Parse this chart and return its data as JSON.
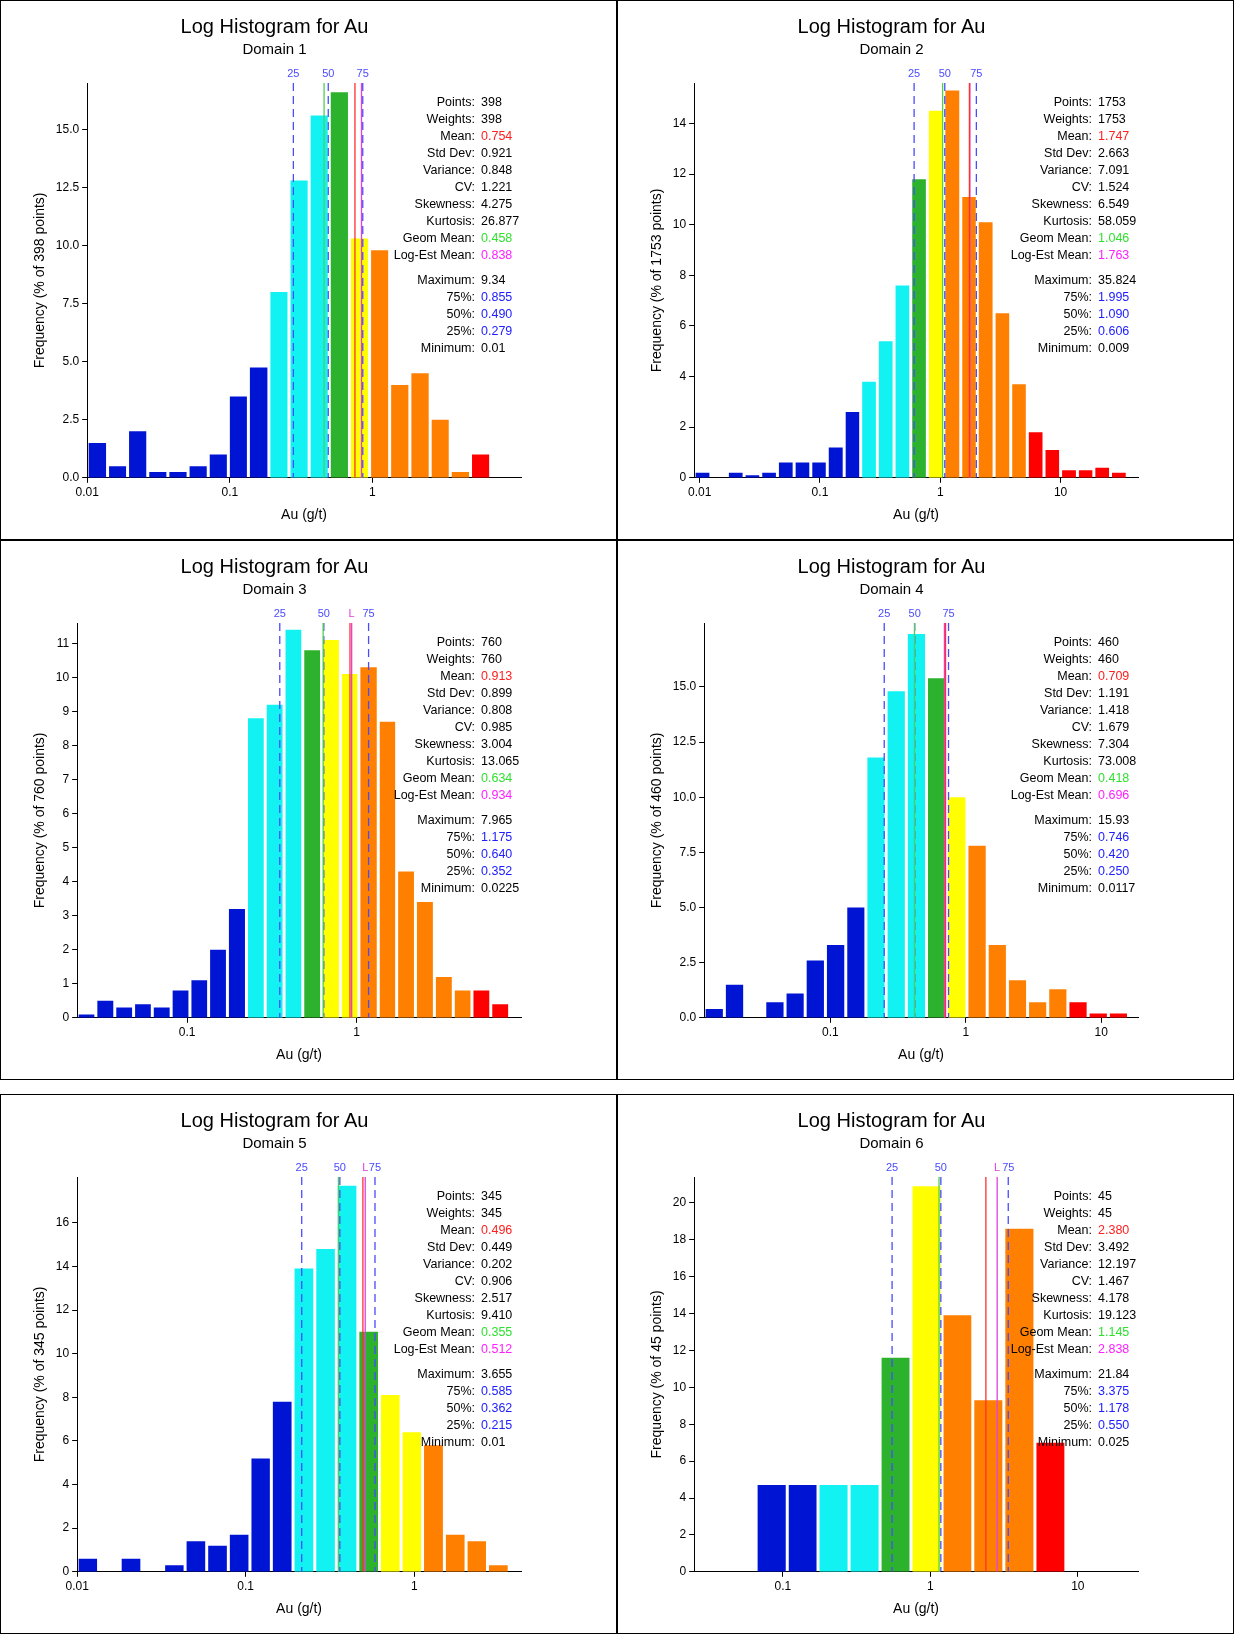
{
  "chart_data": [
    {
      "type": "histogram",
      "title": "Log Histogram for Au",
      "subtitle": "Domain 1",
      "xlabel": "Au (g/t)",
      "ylabel": "Frequency (% of 398 points)",
      "log": "x",
      "bins": [
        0.01,
        0.0139,
        0.0192,
        0.0266,
        0.0368,
        0.051,
        0.0706,
        0.0977,
        0.135,
        0.188,
        0.26,
        0.36,
        0.498,
        0.69,
        0.955,
        1.32,
        1.83,
        2.54,
        3.51,
        4.87,
        6.74,
        9.33
      ],
      "values": [
        1.5,
        0.5,
        2.0,
        0.25,
        0.25,
        0.5,
        1.0,
        3.5,
        4.75,
        8.0,
        12.8,
        15.6,
        16.6,
        10.3,
        9.8,
        4.0,
        4.5,
        2.5,
        0.25,
        1.0,
        0
      ],
      "colors": [
        "#0014d4",
        "#0014d4",
        "#0014d4",
        "#0014d4",
        "#0014d4",
        "#0014d4",
        "#0014d4",
        "#0014d4",
        "#0014d4",
        "#12f2f2",
        "#12f2f2",
        "#12f2f2",
        "#2db22d",
        "#ffff00",
        "#ff8000",
        "#ff8000",
        "#ff8000",
        "#ff8000",
        "#ff8000",
        "#ff0000",
        "#ff0000"
      ],
      "xlim": [
        0.01,
        11
      ],
      "ylim": [
        0,
        17
      ],
      "xticks": [
        0.01,
        0.1,
        1
      ],
      "yticks": [
        {
          "value": 0,
          "label": "0.0"
        },
        {
          "value": 2.5,
          "label": "2.5"
        },
        {
          "value": 5,
          "label": "5.0"
        },
        {
          "value": 7.5,
          "label": "7.5"
        },
        {
          "value": 10,
          "label": "10.0"
        },
        {
          "value": 12.5,
          "label": "12.5"
        },
        {
          "value": 15,
          "label": "15.0"
        }
      ],
      "ref_lines": [
        {
          "axis": "x",
          "value": 0.279,
          "color": "#4a4aff",
          "line_style": "dashed"
        },
        {
          "axis": "x",
          "value": 0.49,
          "color": "#4a4aff",
          "line_style": "dashed"
        },
        {
          "axis": "x",
          "value": 0.855,
          "color": "#4a4aff",
          "line_style": "dashed"
        },
        {
          "axis": "x",
          "value": 0.838,
          "color": "#e040e0",
          "line_style": "solid"
        },
        {
          "axis": "x",
          "value": 0.754,
          "color": "#ff3030",
          "line_style": "solid"
        },
        {
          "axis": "x",
          "value": 0.458,
          "color": "#50d050",
          "line_style": "solid"
        }
      ],
      "annotations": [
        "25",
        "50",
        "75",
        "Points: 398",
        "Weights: 398",
        "Mean: 0.754",
        "Std Dev: 0.921",
        "Variance: 0.848",
        "CV: 1.221",
        "Skewness: 4.275",
        "Kurtosis: 26.877",
        "Geom Mean: 0.458",
        "Log-Est Mean: 0.838",
        "Maximum: 9.34",
        "75%: 0.855",
        "50%: 0.490",
        "25%: 0.279",
        "Minimum: 0.01"
      ]
    },
    {
      "type": "histogram",
      "title": "Log Histogram for Au",
      "subtitle": "Domain 2",
      "xlabel": "Au (g/t)",
      "ylabel": "Frequency (% of 1753 points)",
      "log": "x",
      "bins": [
        0.009,
        0.0124,
        0.017,
        0.0234,
        0.0322,
        0.0443,
        0.061,
        0.0839,
        0.115,
        0.159,
        0.218,
        0.3,
        0.413,
        0.568,
        0.781,
        1.07,
        1.48,
        2.03,
        2.8,
        3.85,
        5.29,
        7.28,
        10,
        13.8,
        18.9,
        26,
        35.8
      ],
      "values": [
        0.2,
        0,
        0.2,
        0.1,
        0.2,
        0.6,
        0.6,
        0.6,
        1.2,
        2.6,
        3.8,
        5.4,
        7.6,
        11.8,
        14.5,
        15.3,
        11.1,
        10.1,
        6.5,
        3.7,
        1.8,
        1.1,
        0.3,
        0.3,
        0.4,
        0.2
      ],
      "colors": [
        "#0014d4",
        "#0014d4",
        "#0014d4",
        "#0014d4",
        "#0014d4",
        "#0014d4",
        "#0014d4",
        "#0014d4",
        "#0014d4",
        "#0014d4",
        "#12f2f2",
        "#12f2f2",
        "#12f2f2",
        "#2db22d",
        "#ffff00",
        "#ff8000",
        "#ff8000",
        "#ff8000",
        "#ff8000",
        "#ff8000",
        "#ff0000",
        "#ff0000",
        "#ff0000",
        "#ff0000",
        "#ff0000",
        "#ff0000"
      ],
      "xlim": [
        0.009,
        44
      ],
      "ylim": [
        0,
        15.6
      ],
      "xticks": [
        0.01,
        0.1,
        1,
        10
      ],
      "yticks": [
        0,
        2,
        4,
        6,
        8,
        10,
        12,
        14
      ],
      "ref_lines": [
        {
          "axis": "x",
          "value": 0.606,
          "color": "#4a4aff",
          "line_style": "dashed"
        },
        {
          "axis": "x",
          "value": 1.09,
          "color": "#4a4aff",
          "line_style": "dashed"
        },
        {
          "axis": "x",
          "value": 1.995,
          "color": "#4a4aff",
          "line_style": "dashed"
        },
        {
          "axis": "x",
          "value": 1.763,
          "color": "#e040e0",
          "line_style": "solid"
        },
        {
          "axis": "x",
          "value": 1.747,
          "color": "#ff3030",
          "line_style": "solid"
        },
        {
          "axis": "x",
          "value": 1.046,
          "color": "#50d050",
          "line_style": "solid"
        }
      ],
      "annotations": [
        "25",
        "50",
        "75",
        "Points: 1753",
        "Weights: 1753",
        "Mean: 1.747",
        "Std Dev: 2.663",
        "Variance: 7.091",
        "CV: 1.524",
        "Skewness: 6.549",
        "Kurtosis: 58.059",
        "Geom Mean: 1.046",
        "Log-Est Mean: 1.763",
        "Maximum: 35.824",
        "75%: 1.995",
        "50%: 1.090",
        "25%: 0.606",
        "Minimum: 0.009"
      ]
    },
    {
      "type": "histogram",
      "title": "Log Histogram for Au",
      "subtitle": "Domain 3",
      "xlabel": "Au (g/t)",
      "ylabel": "Frequency (% of 760 points)",
      "log": "x",
      "bins": [
        0.0225,
        0.029,
        0.0375,
        0.0484,
        0.0624,
        0.0806,
        0.104,
        0.134,
        0.173,
        0.224,
        0.289,
        0.373,
        0.481,
        0.621,
        0.801,
        1.03,
        1.34,
        1.72,
        2.22,
        2.87,
        3.71,
        4.78,
        6.17,
        7.97
      ],
      "values": [
        0.1,
        0.5,
        0.3,
        0.4,
        0.3,
        0.8,
        1.1,
        2.0,
        3.2,
        8.8,
        9.2,
        11.4,
        10.8,
        11.1,
        10.1,
        10.3,
        8.7,
        4.3,
        3.4,
        1.2,
        0.8,
        0.8,
        0.4
      ],
      "colors": [
        "#0014d4",
        "#0014d4",
        "#0014d4",
        "#0014d4",
        "#0014d4",
        "#0014d4",
        "#0014d4",
        "#0014d4",
        "#0014d4",
        "#12f2f2",
        "#12f2f2",
        "#12f2f2",
        "#2db22d",
        "#ffff00",
        "#ffff00",
        "#ff8000",
        "#ff8000",
        "#ff8000",
        "#ff8000",
        "#ff8000",
        "#ff8000",
        "#ff0000",
        "#ff0000"
      ],
      "xlim": [
        0.0225,
        9.3
      ],
      "ylim": [
        0,
        11.6
      ],
      "xticks": [
        0.1,
        1
      ],
      "yticks": [
        0,
        1,
        2,
        3,
        4,
        5,
        6,
        7,
        8,
        9,
        10,
        11
      ],
      "ref_lines": [
        {
          "axis": "x",
          "value": 0.352,
          "color": "#4a4aff",
          "line_style": "dashed"
        },
        {
          "axis": "x",
          "value": 0.64,
          "color": "#4a4aff",
          "line_style": "dashed"
        },
        {
          "axis": "x",
          "value": 1.175,
          "color": "#4a4aff",
          "line_style": "dashed"
        },
        {
          "axis": "x",
          "value": 0.934,
          "color": "#e040e0",
          "line_style": "solid"
        },
        {
          "axis": "x",
          "value": 0.913,
          "color": "#ff3030",
          "line_style": "solid"
        },
        {
          "axis": "x",
          "value": 0.634,
          "color": "#50d050",
          "line_style": "solid"
        }
      ],
      "annotations": [
        "25",
        "50",
        "75",
        "L",
        "Points: 760",
        "Weights: 760",
        "Mean: 0.913",
        "Std Dev: 0.899",
        "Variance: 0.808",
        "CV: 0.985",
        "Skewness: 3.004",
        "Kurtosis: 13.065",
        "Geom Mean: 0.634",
        "Log-Est Mean: 0.934",
        "Maximum: 7.965",
        "75%: 1.175",
        "50%: 0.640",
        "25%: 0.352",
        "Minimum: 0.0225"
      ]
    },
    {
      "type": "histogram",
      "title": "Log Histogram for Au",
      "subtitle": "Domain 4",
      "xlabel": "Au (g/t)",
      "ylabel": "Frequency (% of 460 points)",
      "log": "x",
      "bins": [
        0.0117,
        0.0165,
        0.0233,
        0.0328,
        0.0463,
        0.0652,
        0.092,
        0.13,
        0.183,
        0.258,
        0.364,
        0.513,
        0.723,
        1.02,
        1.44,
        2.03,
        2.86,
        4.03,
        5.68,
        8.01,
        11.3,
        15.9
      ],
      "values": [
        0.4,
        1.5,
        0,
        0.7,
        1.1,
        2.6,
        3.3,
        5.0,
        11.8,
        14.8,
        17.4,
        15.4,
        10.0,
        7.8,
        3.3,
        1.7,
        0.7,
        1.3,
        0.7,
        0.2,
        0.2
      ],
      "colors": [
        "#0014d4",
        "#0014d4",
        "#0014d4",
        "#0014d4",
        "#0014d4",
        "#0014d4",
        "#0014d4",
        "#0014d4",
        "#12f2f2",
        "#12f2f2",
        "#12f2f2",
        "#2db22d",
        "#ffff00",
        "#ff8000",
        "#ff8000",
        "#ff8000",
        "#ff8000",
        "#ff8000",
        "#ff0000",
        "#ff0000",
        "#ff0000"
      ],
      "xlim": [
        0.0117,
        18.7
      ],
      "ylim": [
        0,
        17.9
      ],
      "xticks": [
        0.1,
        1,
        10
      ],
      "yticks": [
        {
          "value": 0,
          "label": "0.0"
        },
        {
          "value": 2.5,
          "label": "2.5"
        },
        {
          "value": 5,
          "label": "5.0"
        },
        {
          "value": 7.5,
          "label": "7.5"
        },
        {
          "value": 10,
          "label": "10.0"
        },
        {
          "value": 12.5,
          "label": "12.5"
        },
        {
          "value": 15,
          "label": "15.0"
        }
      ],
      "ref_lines": [
        {
          "axis": "x",
          "value": 0.25,
          "color": "#4a4aff",
          "line_style": "dashed"
        },
        {
          "axis": "x",
          "value": 0.42,
          "color": "#4a4aff",
          "line_style": "dashed"
        },
        {
          "axis": "x",
          "value": 0.746,
          "color": "#4a4aff",
          "line_style": "dashed"
        },
        {
          "axis": "x",
          "value": 0.696,
          "color": "#e040e0",
          "line_style": "solid"
        },
        {
          "axis": "x",
          "value": 0.709,
          "color": "#ff3030",
          "line_style": "solid"
        },
        {
          "axis": "x",
          "value": 0.418,
          "color": "#50d050",
          "line_style": "solid"
        }
      ],
      "annotations": [
        "25",
        "50",
        "75",
        "Points: 460",
        "Weights: 460",
        "Mean: 0.709",
        "Std Dev: 1.191",
        "Variance: 1.418",
        "CV: 1.679",
        "Skewness: 7.304",
        "Kurtosis: 73.008",
        "Geom Mean: 0.418",
        "Log-Est Mean: 0.696",
        "Maximum: 15.93",
        "75%: 0.746",
        "50%: 0.420",
        "25%: 0.250",
        "Minimum: 0.0117"
      ]
    },
    {
      "type": "histogram",
      "title": "Log Histogram for Au",
      "subtitle": "Domain 5",
      "xlabel": "Au (g/t)",
      "ylabel": "Frequency (% of 345 points)",
      "log": "x",
      "bins": [
        0.01,
        0.0134,
        0.018,
        0.0242,
        0.0326,
        0.0437,
        0.0587,
        0.0789,
        0.106,
        0.142,
        0.191,
        0.257,
        0.345,
        0.463,
        0.622,
        0.836,
        1.12,
        1.51,
        2.03,
        2.72,
        3.66
      ],
      "values": [
        0.6,
        0,
        0.6,
        0,
        0.3,
        1.4,
        1.2,
        1.7,
        5.2,
        7.8,
        13.9,
        14.8,
        17.7,
        11.0,
        8.1,
        6.4,
        5.8,
        1.7,
        1.4,
        0.3
      ],
      "colors": [
        "#0014d4",
        "#0014d4",
        "#0014d4",
        "#0014d4",
        "#0014d4",
        "#0014d4",
        "#0014d4",
        "#0014d4",
        "#0014d4",
        "#0014d4",
        "#12f2f2",
        "#12f2f2",
        "#12f2f2",
        "#2db22d",
        "#ffff00",
        "#ffff00",
        "#ff8000",
        "#ff8000",
        "#ff8000",
        "#ff8000"
      ],
      "xlim": [
        0.01,
        4.3
      ],
      "ylim": [
        0,
        18.1
      ],
      "xticks": [
        0.01,
        0.1,
        1
      ],
      "yticks": [
        0,
        2,
        4,
        6,
        8,
        10,
        12,
        14,
        16
      ],
      "ref_lines": [
        {
          "axis": "x",
          "value": 0.215,
          "color": "#4a4aff",
          "line_style": "dashed"
        },
        {
          "axis": "x",
          "value": 0.362,
          "color": "#4a4aff",
          "line_style": "dashed"
        },
        {
          "axis": "x",
          "value": 0.585,
          "color": "#4a4aff",
          "line_style": "dashed"
        },
        {
          "axis": "x",
          "value": 0.512,
          "color": "#e040e0",
          "line_style": "solid"
        },
        {
          "axis": "x",
          "value": 0.496,
          "color": "#ff3030",
          "line_style": "solid"
        },
        {
          "axis": "x",
          "value": 0.355,
          "color": "#50d050",
          "line_style": "solid"
        }
      ],
      "annotations": [
        "25",
        "50",
        "75",
        "L",
        "Points: 345",
        "Weights: 345",
        "Mean: 0.496",
        "Std Dev: 0.449",
        "Variance: 0.202",
        "CV: 0.906",
        "Skewness: 2.517",
        "Kurtosis: 9.410",
        "Geom Mean: 0.355",
        "Log-Est Mean: 0.512",
        "Maximum: 3.655",
        "75%: 0.585",
        "50%: 0.362",
        "25%: 0.215",
        "Minimum: 0.01"
      ]
    },
    {
      "type": "histogram",
      "title": "Log Histogram for Au",
      "subtitle": "Domain 6",
      "xlabel": "Au (g/t)",
      "ylabel": "Frequency (% of 45 points)",
      "log": "x",
      "bins": [
        0.0658,
        0.107,
        0.173,
        0.281,
        0.456,
        0.739,
        1.2,
        1.94,
        3.15,
        5.12,
        8.3
      ],
      "values": [
        4.7,
        4.7,
        4.7,
        4.7,
        11.6,
        20.9,
        13.9,
        9.3,
        18.6,
        7.0
      ],
      "colors": [
        "#0014d4",
        "#0014d4",
        "#12f2f2",
        "#12f2f2",
        "#2db22d",
        "#ffff00",
        "#ff8000",
        "#ff8000",
        "#ff8000",
        "#ff0000"
      ],
      "xlim": [
        0.025,
        25.6
      ],
      "ylim": [
        0,
        21.4
      ],
      "xticks": [
        0.1,
        1,
        10
      ],
      "yticks": [
        0,
        2,
        4,
        6,
        8,
        10,
        12,
        14,
        16,
        18,
        20
      ],
      "ref_lines": [
        {
          "axis": "x",
          "value": 0.55,
          "color": "#4a4aff",
          "line_style": "dashed"
        },
        {
          "axis": "x",
          "value": 1.178,
          "color": "#4a4aff",
          "line_style": "dashed"
        },
        {
          "axis": "x",
          "value": 3.375,
          "color": "#4a4aff",
          "line_style": "dashed"
        },
        {
          "axis": "x",
          "value": 2.838,
          "color": "#e040e0",
          "line_style": "solid"
        },
        {
          "axis": "x",
          "value": 2.38,
          "color": "#ff3030",
          "line_style": "solid"
        },
        {
          "axis": "x",
          "value": 1.145,
          "color": "#50d050",
          "line_style": "solid"
        }
      ],
      "annotations": [
        "25",
        "50",
        "75",
        "L",
        "Points: 45",
        "Weights: 45",
        "Mean: 2.380",
        "Std Dev: 3.492",
        "Variance: 12.197",
        "CV: 1.467",
        "Skewness: 4.178",
        "Kurtosis: 19.123",
        "Geom Mean: 1.145",
        "Log-Est Mean: 2.838",
        "Maximum: 21.84",
        "75%: 3.375",
        "50%: 1.178",
        "25%: 0.550",
        "Minimum: 0.025"
      ]
    }
  ]
}
